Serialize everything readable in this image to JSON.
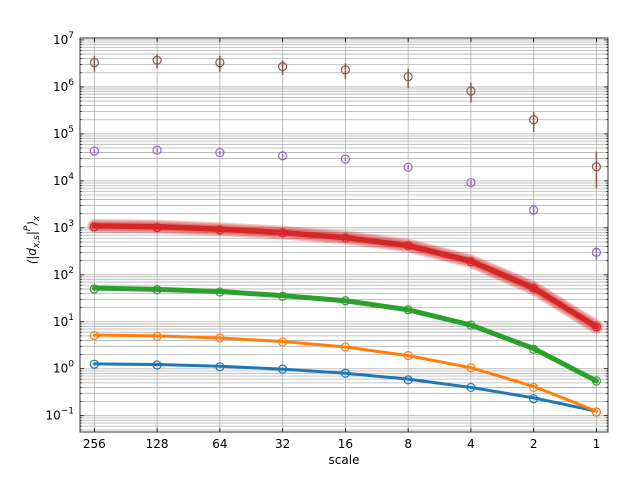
{
  "chart_data": {
    "type": "line",
    "title": "",
    "xlabel": "scale",
    "ylabel_main": "⟨|d",
    "ylabel_sub": "x,s",
    "ylabel_sup": "P",
    "ylabel_close": "⟩",
    "ylabel_tail": "x",
    "x_scale": "log2-reversed",
    "y_scale": "log10",
    "xlim": [
      300,
      0.88
    ],
    "ylim": [
      0.045,
      11000000
    ],
    "grid": true,
    "x_ticks": [
      {
        "value": 256,
        "label": "256"
      },
      {
        "value": 128,
        "label": "128"
      },
      {
        "value": 64,
        "label": "64"
      },
      {
        "value": 32,
        "label": "32"
      },
      {
        "value": 16,
        "label": "16"
      },
      {
        "value": 8,
        "label": "8"
      },
      {
        "value": 4,
        "label": "4"
      },
      {
        "value": 2,
        "label": "2"
      },
      {
        "value": 1,
        "label": "1"
      }
    ],
    "y_ticks": [
      {
        "value": 0.1,
        "base": "10",
        "exp": "−1"
      },
      {
        "value": 1,
        "base": "10",
        "exp": "0"
      },
      {
        "value": 10,
        "base": "10",
        "exp": "1"
      },
      {
        "value": 100,
        "base": "10",
        "exp": "2"
      },
      {
        "value": 1000,
        "base": "10",
        "exp": "3"
      },
      {
        "value": 10000,
        "base": "10",
        "exp": "4"
      },
      {
        "value": 100000,
        "base": "10",
        "exp": "5"
      },
      {
        "value": 1000000,
        "base": "10",
        "exp": "6"
      },
      {
        "value": 10000000,
        "base": "10",
        "exp": "7"
      }
    ],
    "x": [
      256,
      128,
      64,
      32,
      16,
      8,
      4,
      2,
      1
    ],
    "series": [
      {
        "color": "#1f77b4",
        "points": [
          1.25,
          1.2,
          1.1,
          0.98,
          0.8,
          0.58,
          0.4,
          0.23,
          0.12
        ],
        "fit": [
          1.27,
          1.23,
          1.13,
          0.98,
          0.8,
          0.6,
          0.4,
          0.24,
          0.125
        ],
        "line_width": 3,
        "fit_alpha": 1
      },
      {
        "color": "#ff7f0e",
        "points": [
          5.1,
          4.9,
          4.5,
          3.7,
          2.9,
          1.9,
          1.05,
          0.4,
          0.12
        ],
        "fit": [
          5.2,
          5.0,
          4.5,
          3.8,
          2.9,
          1.9,
          1.05,
          0.42,
          0.125
        ],
        "line_width": 3,
        "fit_alpha": 1
      },
      {
        "color": "#2ca02c",
        "points": [
          50,
          48,
          43,
          35,
          28,
          18,
          8.5,
          2.6,
          0.55
        ],
        "fit": [
          52,
          49,
          44,
          36,
          28,
          18,
          8.5,
          2.7,
          0.55
        ],
        "line_width": 5,
        "fit_alpha": 1
      },
      {
        "color": "#d62728",
        "points": [
          1050,
          1010,
          900,
          780,
          610,
          420,
          190,
          52,
          7.8
        ],
        "fit": [
          1100,
          1060,
          940,
          790,
          620,
          420,
          195,
          52,
          7.8
        ],
        "line_width": 11,
        "fit_alpha": 0.55
      },
      {
        "color": "#9467bd",
        "points": [
          43000,
          45000,
          40000,
          34000,
          29000,
          19500,
          9200,
          2400,
          300
        ],
        "err_lo": [
          4000,
          4000,
          3500,
          3000,
          2500,
          2000,
          1200,
          500,
          90
        ],
        "err_hi": [
          4000,
          4000,
          3500,
          3000,
          2500,
          2000,
          1200,
          500,
          90
        ]
      },
      {
        "color": "#8c564b",
        "points": [
          3300000,
          3700000,
          3300000,
          2700000,
          2300000,
          1650000,
          820000,
          200000,
          20000
        ],
        "err_lo": [
          1200000,
          1200000,
          1200000,
          900000,
          800000,
          700000,
          350000,
          90000,
          13000
        ],
        "err_hi": [
          1300000,
          1300000,
          1300000,
          1000000,
          900000,
          800000,
          400000,
          90000,
          22000
        ]
      }
    ]
  }
}
